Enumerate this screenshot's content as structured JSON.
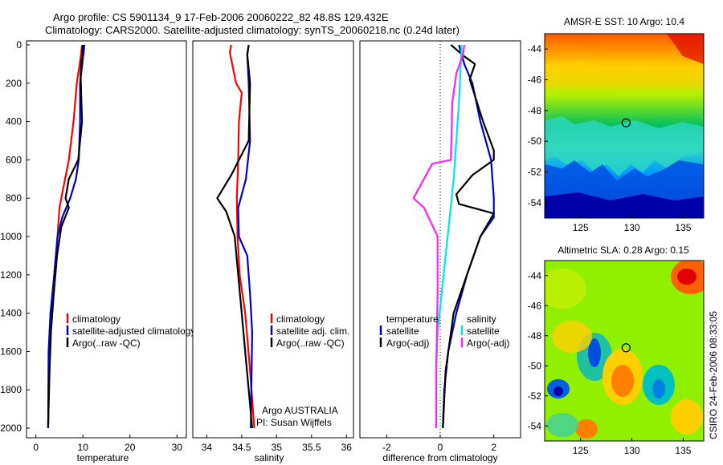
{
  "header": {
    "line1": "Argo profile: CS 5901134_9 17-Feb-2006 20060222_82 48.8S 129.432E",
    "line2": "Climatology: CARS2000. Satellite-adjusted climatology: synTS_20060218.nc (0.24d later)"
  },
  "side_label": "CSIRO 24-Feb-2006 08:33:05",
  "chart_data": [
    {
      "type": "line",
      "panel": "temperature",
      "xlabel": "temperature",
      "ylabel": "",
      "xlim": [
        -2,
        32
      ],
      "ylim": [
        0,
        2050
      ],
      "y_reversed": true,
      "xticks": [
        0,
        10,
        20,
        30
      ],
      "yticks": [
        0,
        200,
        400,
        600,
        800,
        1000,
        1200,
        1400,
        1600,
        1800,
        2000
      ],
      "legend": [
        "climatology",
        "satellite-adjusted climatology",
        "Argo(..raw -QC)"
      ],
      "series": [
        {
          "name": "climatology",
          "color": "#ff0000",
          "x": [
            9.8,
            9.6,
            8.7,
            8.0,
            7.0,
            5.4,
            5.0,
            4.6,
            3.9,
            3.2,
            2.9,
            2.8,
            2.6
          ],
          "y": [
            0,
            50,
            200,
            400,
            600,
            800,
            850,
            1000,
            1200,
            1400,
            1500,
            1700,
            2000
          ]
        },
        {
          "name": "satellite-adjusted climatology",
          "color": "#0000cc",
          "x": [
            10.3,
            10.1,
            9.4,
            9.4,
            9.1,
            8.5,
            7.3,
            5.6,
            4.6,
            3.9,
            3.1,
            2.7,
            2.6
          ],
          "y": [
            0,
            50,
            200,
            400,
            600,
            700,
            800,
            900,
            1000,
            1200,
            1400,
            1600,
            2000
          ]
        },
        {
          "name": "Argo(..raw -QC)",
          "color": "#000000",
          "x": [
            10.0,
            9.8,
            9.5,
            9.8,
            9.0,
            7.0,
            6.3,
            7.0,
            5.4,
            4.5,
            3.8,
            3.2,
            2.9,
            2.6
          ],
          "y": [
            0,
            50,
            150,
            400,
            600,
            700,
            800,
            850,
            950,
            1100,
            1300,
            1500,
            1700,
            1990
          ]
        }
      ]
    },
    {
      "type": "line",
      "panel": "salinity",
      "xlabel": "salinity",
      "ylabel": "",
      "xlim": [
        33.8,
        36.1
      ],
      "ylim": [
        0,
        2050
      ],
      "y_reversed": true,
      "xticks": [
        34,
        34.5,
        35,
        35.5,
        36
      ],
      "legend": [
        "climatology",
        "satellite adj. clim.",
        "Argo(..raw -QC)"
      ],
      "annotation": [
        "Argo AUSTRALIA",
        "PI: Susan Wijffels"
      ],
      "series": [
        {
          "name": "climatology",
          "color": "#ff0000",
          "x": [
            34.35,
            34.33,
            34.42,
            34.5,
            34.46,
            34.45,
            34.43,
            34.44,
            34.47,
            34.55,
            34.62,
            34.68
          ],
          "y": [
            0,
            40,
            200,
            250,
            400,
            600,
            800,
            1000,
            1200,
            1400,
            1700,
            2000
          ]
        },
        {
          "name": "satellite adj. clim.",
          "color": "#0000cc",
          "x": [
            34.6,
            34.58,
            34.6,
            34.62,
            34.56,
            34.45,
            34.46,
            34.58,
            34.62,
            34.65,
            34.63
          ],
          "y": [
            0,
            50,
            200,
            500,
            700,
            850,
            1000,
            1100,
            1300,
            1500,
            2000
          ]
        },
        {
          "name": "Argo(..raw -QC)",
          "color": "#000000",
          "x": [
            34.6,
            34.58,
            34.62,
            34.6,
            34.35,
            34.15,
            34.28,
            34.4,
            34.45,
            34.5,
            34.55,
            34.6,
            34.65
          ],
          "y": [
            0,
            50,
            200,
            500,
            680,
            800,
            870,
            1000,
            1200,
            1400,
            1600,
            1800,
            2000
          ]
        }
      ]
    },
    {
      "type": "line",
      "panel": "difference",
      "xlabel": "difference from climatology",
      "ylabel": "",
      "xlim": [
        -3,
        3
      ],
      "ylim": [
        0,
        2050
      ],
      "y_reversed": true,
      "xticks": [
        -2,
        0,
        2
      ],
      "legend_left": [
        "temperature",
        "satellite",
        "Argo(-adj)"
      ],
      "legend_right": [
        "salinity",
        "satellite",
        "Argo(-adj)"
      ],
      "series": [
        {
          "name": "satellite",
          "group": "temperature",
          "color": "#0000cc",
          "x": [
            0.7,
            0.9,
            1.2,
            1.5,
            1.9,
            2.0,
            2.0,
            1.5,
            1.0,
            0.6,
            0.3,
            0.15,
            0.1
          ],
          "y": [
            0,
            100,
            200,
            400,
            600,
            800,
            900,
            1000,
            1200,
            1400,
            1600,
            1800,
            2000
          ]
        },
        {
          "name": "Argo(-adj)",
          "group": "temperature",
          "color": "#000000",
          "x": [
            0.4,
            0.9,
            1.3,
            1.1,
            1.6,
            2.0,
            2.0,
            1.2,
            0.6,
            0.7,
            2.0,
            1.5,
            1.0,
            0.5,
            0.2,
            0.1
          ],
          "y": [
            0,
            60,
            100,
            180,
            400,
            550,
            600,
            680,
            780,
            830,
            880,
            1000,
            1200,
            1400,
            1700,
            2000
          ]
        },
        {
          "name": "satellite",
          "group": "salinity",
          "color": "#00e5e5",
          "x": [
            0.8,
            0.75,
            0.7,
            0.6,
            0.5,
            0.35,
            0.2,
            0.05,
            -0.1,
            -0.15,
            -0.15
          ],
          "y": [
            0,
            150,
            300,
            500,
            700,
            900,
            1100,
            1300,
            1500,
            1700,
            2000
          ]
        },
        {
          "name": "Argo(-adj)",
          "group": "salinity",
          "color": "#ff22ff",
          "x": [
            0.9,
            0.85,
            0.6,
            0.45,
            0.4,
            -0.3,
            -1.0,
            -0.6,
            -0.1,
            -0.1,
            -0.15,
            -0.15
          ],
          "y": [
            0,
            50,
            150,
            300,
            600,
            620,
            800,
            850,
            1000,
            1300,
            1700,
            2000
          ]
        }
      ]
    },
    {
      "type": "heatmap",
      "panel": "sst_map",
      "title": "AMSR-E SST: 10 Argo: 10.4",
      "xlim": [
        121.5,
        137
      ],
      "ylim": [
        -55,
        -43
      ],
      "xticks": [
        125,
        130,
        135
      ],
      "yticks": [
        -44,
        -46,
        -48,
        -50,
        -52,
        -54
      ],
      "marker": {
        "lon": 129.432,
        "lat": -48.8
      }
    },
    {
      "type": "heatmap",
      "panel": "sla_map",
      "title": "Altimetric SLA: 0.28 Argo: 0.15",
      "xlim": [
        121.5,
        137
      ],
      "ylim": [
        -55,
        -43
      ],
      "xticks": [
        125,
        130,
        135
      ],
      "yticks": [
        -44,
        -46,
        -48,
        -50,
        -52,
        -54
      ],
      "marker": {
        "lon": 129.432,
        "lat": -48.8
      }
    }
  ]
}
